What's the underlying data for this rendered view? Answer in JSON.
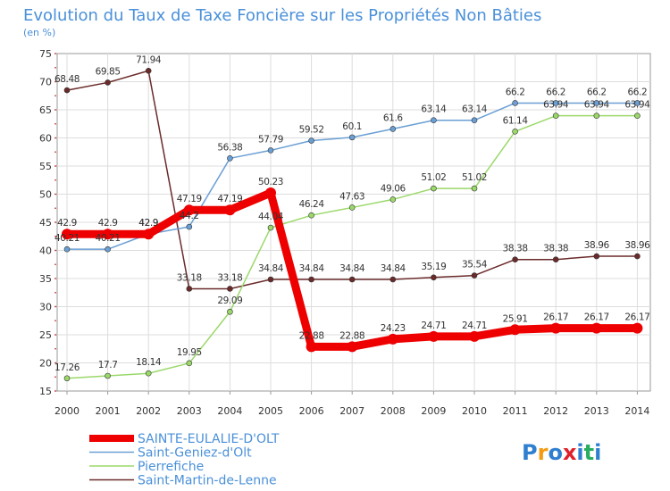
{
  "chart_data": {
    "type": "line",
    "title": "Evolution du Taux de Taxe Foncière sur les Propriétés Non Bâties",
    "ylabel": "(en %)",
    "xlabel": "",
    "ylim": [
      15,
      75
    ],
    "yticks": [
      15,
      20,
      25,
      30,
      35,
      40,
      45,
      50,
      55,
      60,
      65,
      70,
      75
    ],
    "categories": [
      "2000",
      "2001",
      "2002",
      "2003",
      "2004",
      "2005",
      "2006",
      "2007",
      "2008",
      "2009",
      "2010",
      "2011",
      "2012",
      "2013",
      "2014"
    ],
    "series": [
      {
        "name": "Saint-Martin-de-Lenne",
        "color": "#6b2a2a",
        "values": [
          68.48,
          69.85,
          71.94,
          33.18,
          33.18,
          34.84,
          34.84,
          34.84,
          34.84,
          35.19,
          35.54,
          38.38,
          38.38,
          38.96,
          38.96
        ],
        "labels": [
          "68.48",
          "69.85",
          "71.94",
          "33.18",
          "33.18",
          "34.84",
          "34.84",
          "34.84",
          "34.84",
          "35.19",
          "35.54",
          "38.38",
          "38.38",
          "38.96",
          "38.96"
        ]
      },
      {
        "name": "Saint-Geniez-d'Olt",
        "color": "#6a9fd4",
        "values": [
          40.21,
          40.21,
          42.9,
          44.2,
          56.38,
          57.79,
          59.52,
          60.1,
          61.6,
          63.14,
          63.14,
          66.2,
          66.2,
          66.2,
          66.2
        ],
        "labels": [
          "40.21",
          "40.21",
          "42.9",
          "44.2",
          "56.38",
          "57.79",
          "59.52",
          "60.1",
          "61.6",
          "63.14",
          "63.14",
          "66.2",
          "66.2",
          "66.2",
          "66.2"
        ]
      },
      {
        "name": "Pierrefiche",
        "color": "#9bd86a",
        "values": [
          17.26,
          17.7,
          18.14,
          19.95,
          29.09,
          44.04,
          46.24,
          47.63,
          49.06,
          51.02,
          51.02,
          61.14,
          63.94,
          63.94,
          63.94
        ],
        "labels": [
          "17.26",
          "17.7",
          "18.14",
          "19.95",
          "29.09",
          "44.04",
          "46.24",
          "47.63",
          "49.06",
          "51.02",
          "51.02",
          "61.14",
          "63.94",
          "63.94",
          "63.94"
        ]
      },
      {
        "name": "SAINTE-EULALIE-D'OLT",
        "color": "#ee0000",
        "values": [
          42.9,
          42.9,
          42.9,
          47.19,
          47.19,
          50.23,
          22.88,
          22.88,
          24.23,
          24.71,
          24.71,
          25.91,
          26.17,
          26.17,
          26.17
        ],
        "labels": [
          "42.9",
          "42.9",
          "42.9",
          "47.19",
          "47.19",
          "50.23",
          "22.88",
          "22.88",
          "24.23",
          "24.71",
          "24.71",
          "25.91",
          "26.17",
          "26.17",
          "26.17"
        ]
      }
    ],
    "legend": [
      {
        "name": "SAINTE-EULALIE-D'OLT",
        "color": "#ee0000",
        "thick": true
      },
      {
        "name": "Saint-Geniez-d'Olt",
        "color": "#6a9fd4",
        "thick": false
      },
      {
        "name": "Pierrefiche",
        "color": "#9bd86a",
        "thick": false
      },
      {
        "name": "Saint-Martin-de-Lenne",
        "color": "#6b2a2a",
        "thick": false
      }
    ],
    "legend_position": "bottom-left",
    "grid": true
  },
  "branding": {
    "logo_text": "Proxiti",
    "logo_colors": [
      "#2f7fd0",
      "#f39c12",
      "#2f7fd0",
      "#e0202a",
      "#2f7fd0",
      "#27ae60",
      "#2f7fd0"
    ]
  }
}
